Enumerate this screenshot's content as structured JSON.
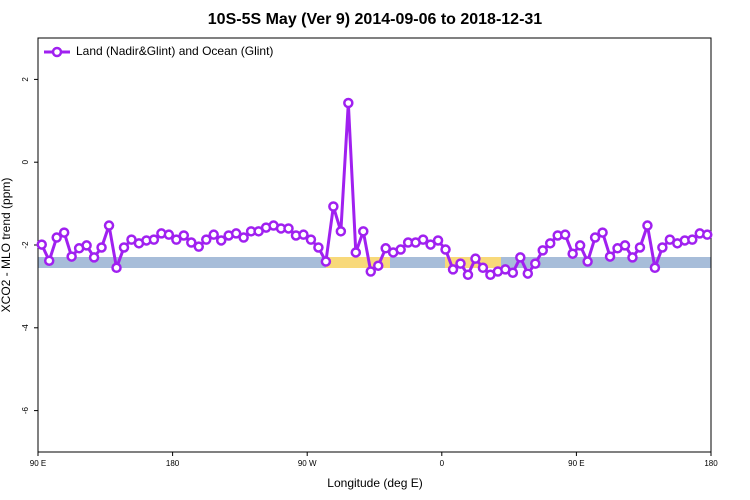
{
  "chart_data": {
    "type": "line",
    "title": "10S-5S May (Ver 9)   2014-09-06 to 2018-12-31",
    "x_label": "Longitude (deg E)",
    "y_label": "XCO2 - MLO trend (ppm)",
    "xlim": [
      90,
      540
    ],
    "ylim": [
      -7,
      3
    ],
    "xticks": [
      {
        "value": 90,
        "label": "90 E"
      },
      {
        "value": 180,
        "label": "180"
      },
      {
        "value": 270,
        "label": "90 W"
      },
      {
        "value": 360,
        "label": "0"
      },
      {
        "value": 450,
        "label": "90 E"
      },
      {
        "value": 540,
        "label": "180"
      }
    ],
    "yticks": [
      -6,
      -4,
      -2,
      0,
      2
    ],
    "legend": "top-left",
    "series": [
      {
        "name": "Land (Nadir&Glint) and Ocean (Glint)",
        "color": "#a020f0",
        "x": [
          92.5,
          97.5,
          102.5,
          107.5,
          112.5,
          117.5,
          122.5,
          127.5,
          132.5,
          137.5,
          142.5,
          147.5,
          152.5,
          157.5,
          162.5,
          167.5,
          172.5,
          177.5,
          182.5,
          187.5,
          192.5,
          197.5,
          202.5,
          207.5,
          212.5,
          217.5,
          222.5,
          227.5,
          232.5,
          237.5,
          242.5,
          247.5,
          252.5,
          257.5,
          262.5,
          267.5,
          272.5,
          277.5,
          282.5,
          287.5,
          292.5,
          297.5,
          302.5,
          307.5,
          312.5,
          317.5,
          322.5,
          327.5,
          332.5,
          337.5,
          342.5,
          347.5,
          352.5,
          357.5,
          362.5,
          367.5,
          372.5,
          377.5,
          382.5,
          387.5,
          392.5,
          397.5,
          402.5,
          407.5,
          412.5,
          417.5,
          422.5,
          427.5,
          432.5,
          437.5,
          442.5,
          447.5,
          452.5,
          457.5,
          462.5,
          467.5,
          472.5,
          477.5,
          482.5,
          487.5,
          492.5,
          497.5,
          502.5,
          507.5,
          512.5,
          517.5,
          522.5,
          527.5,
          532.5,
          537.5
        ],
        "values": [
          -1.99,
          -2.38,
          -1.82,
          -1.7,
          -2.28,
          -2.08,
          -2.01,
          -2.3,
          -2.06,
          -1.53,
          -2.55,
          -2.06,
          -1.87,
          -1.96,
          -1.89,
          -1.87,
          -1.72,
          -1.75,
          -1.87,
          -1.77,
          -1.94,
          -2.04,
          -1.87,
          -1.75,
          -1.89,
          -1.77,
          -1.72,
          -1.82,
          -1.67,
          -1.67,
          -1.58,
          -1.53,
          -1.6,
          -1.6,
          -1.77,
          -1.75,
          -1.87,
          -2.06,
          -2.4,
          -1.07,
          -1.67,
          1.43,
          -2.18,
          -1.67,
          -2.64,
          -2.5,
          -2.08,
          -2.18,
          -2.11,
          -1.94,
          -1.94,
          -1.87,
          -1.99,
          -1.89,
          -2.11,
          -2.59,
          -2.45,
          -2.72,
          -2.33,
          -2.55,
          -2.72,
          -2.64,
          -2.59,
          -2.67,
          -2.3,
          -2.69,
          -2.45,
          -2.13,
          -1.96,
          -1.77,
          -1.75,
          -2.21,
          -2.01,
          -2.4,
          -1.82,
          -1.7,
          -2.28,
          -2.08,
          -2.01,
          -2.3,
          -2.06,
          -1.53,
          -2.55,
          -2.06,
          -1.87,
          -1.96,
          -1.89,
          -1.87,
          -1.72,
          -1.75
        ]
      }
    ]
  }
}
